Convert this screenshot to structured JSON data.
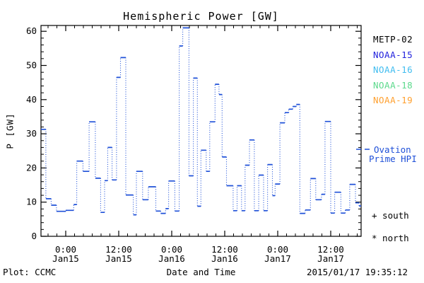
{
  "title": "Hemispheric Power [GW]",
  "axes": {
    "ylabel": "P [GW]",
    "xlabel": "Date and Time",
    "y_ticks": [
      0,
      10,
      20,
      30,
      40,
      50,
      60
    ],
    "x_ticks": [
      {
        "t": 0,
        "time": "0:00",
        "date": "Jan15"
      },
      {
        "t": 12,
        "time": "12:00",
        "date": "Jan15"
      },
      {
        "t": 24,
        "time": "0:00",
        "date": "Jan16"
      },
      {
        "t": 36,
        "time": "12:00",
        "date": "Jan16"
      },
      {
        "t": 48,
        "time": "0:00",
        "date": "Jan17"
      },
      {
        "t": 60,
        "time": "12:00",
        "date": "Jan17"
      }
    ]
  },
  "legend": {
    "satellites": [
      {
        "label": "METP-02",
        "color": "#000000"
      },
      {
        "label": "NOAA-15",
        "color": "#2222dd"
      },
      {
        "label": "NOAA-16",
        "color": "#41bdf0"
      },
      {
        "label": "NOAA-18",
        "color": "#5cd98c"
      },
      {
        "label": "NOAA-19",
        "color": "#ffa02f"
      }
    ],
    "line_label_line1": "Ovation",
    "line_label_line2": "Prime HPI",
    "south_marker": "+ south",
    "north_marker": "* north"
  },
  "footer": {
    "credit": "Plot: CCMC",
    "timestamp": "2015/01/17 19:35:12"
  },
  "chart_data": {
    "type": "line",
    "style": "stepped-dotted",
    "title": "Hemispheric Power [GW]",
    "xlabel": "Date and Time",
    "ylabel": "P [GW]",
    "line_color": "#1f50d8",
    "ylim": [
      0,
      61.7
    ],
    "xlim": [
      -5.6,
      66.88
    ],
    "x_unit": "hours from 2015-01-15 00:00 UT",
    "x_minor_step": 2,
    "y_minor_step": 2,
    "legend_position": "right",
    "grid": false,
    "steps": [
      [
        -5.6,
        31.3
      ],
      [
        -4.5,
        11.0
      ],
      [
        -3.3,
        9.1
      ],
      [
        -2.1,
        7.3
      ],
      [
        0.0,
        7.6
      ],
      [
        1.8,
        9.3
      ],
      [
        2.5,
        22.0
      ],
      [
        3.9,
        19.0
      ],
      [
        5.3,
        33.5
      ],
      [
        6.7,
        17.0
      ],
      [
        7.9,
        7.0
      ],
      [
        8.8,
        16.3
      ],
      [
        9.5,
        26.0
      ],
      [
        10.5,
        16.5
      ],
      [
        11.5,
        46.5
      ],
      [
        12.4,
        52.3
      ],
      [
        13.6,
        12.1
      ],
      [
        15.3,
        6.3
      ],
      [
        16.0,
        19.0
      ],
      [
        17.4,
        10.7
      ],
      [
        18.7,
        14.5
      ],
      [
        20.4,
        7.4
      ],
      [
        21.5,
        6.7
      ],
      [
        22.6,
        8.1
      ],
      [
        23.3,
        16.2
      ],
      [
        24.7,
        7.4
      ],
      [
        25.7,
        55.7
      ],
      [
        26.5,
        61.0
      ],
      [
        27.9,
        17.7
      ],
      [
        28.9,
        46.3
      ],
      [
        29.8,
        8.8
      ],
      [
        30.6,
        25.2
      ],
      [
        31.8,
        19.0
      ],
      [
        32.6,
        33.5
      ],
      [
        33.8,
        44.5
      ],
      [
        34.7,
        41.5
      ],
      [
        35.4,
        23.2
      ],
      [
        36.4,
        14.8
      ],
      [
        37.9,
        7.5
      ],
      [
        38.8,
        14.8
      ],
      [
        39.8,
        7.5
      ],
      [
        40.6,
        20.8
      ],
      [
        41.6,
        28.2
      ],
      [
        42.7,
        7.5
      ],
      [
        43.7,
        17.9
      ],
      [
        44.8,
        7.5
      ],
      [
        45.7,
        21.0
      ],
      [
        46.8,
        11.9
      ],
      [
        47.4,
        15.3
      ],
      [
        48.5,
        33.2
      ],
      [
        49.6,
        36.2
      ],
      [
        50.5,
        37.2
      ],
      [
        51.4,
        38.0
      ],
      [
        52.2,
        38.6
      ],
      [
        53.0,
        6.7
      ],
      [
        54.2,
        7.7
      ],
      [
        55.4,
        16.9
      ],
      [
        56.6,
        10.7
      ],
      [
        57.9,
        12.3
      ],
      [
        58.7,
        33.6
      ],
      [
        60.0,
        6.8
      ],
      [
        60.9,
        12.9
      ],
      [
        62.3,
        6.8
      ],
      [
        63.3,
        7.7
      ],
      [
        64.3,
        15.2
      ],
      [
        65.6,
        9.8
      ],
      [
        66.4,
        8.9
      ],
      [
        66.88,
        8.9
      ]
    ]
  }
}
